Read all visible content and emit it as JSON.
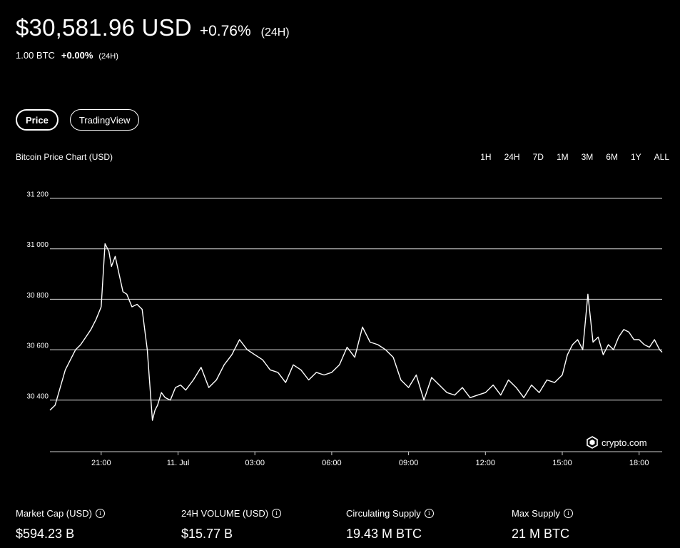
{
  "header": {
    "price": "$30,581.96 USD",
    "change": "+0.76%",
    "period": "(24H)"
  },
  "btc": {
    "amount": "1.00 BTC",
    "change": "+0.00%",
    "period": "(24H)"
  },
  "tabs": [
    {
      "label": "Price",
      "active": true
    },
    {
      "label": "TradingView",
      "active": false
    }
  ],
  "chart_title": "Bitcoin Price Chart (USD)",
  "ranges": [
    "1H",
    "24H",
    "7D",
    "1M",
    "3M",
    "6M",
    "1Y",
    "ALL"
  ],
  "watermark": "crypto.com",
  "stats": [
    {
      "label": "Market Cap (USD)",
      "value": "$594.23 B"
    },
    {
      "label": "24H VOLUME (USD)",
      "value": "$15.77 B"
    },
    {
      "label": "Circulating Supply",
      "value": "19.43 M BTC"
    },
    {
      "label": "Max Supply",
      "value": "21 M BTC"
    }
  ],
  "colors": {
    "background": "#000000",
    "foreground": "#ffffff"
  },
  "chart_data": {
    "type": "line",
    "ylim": [
      30200,
      31200
    ],
    "ytick_labels": [
      "31 200",
      "31 000",
      "30 800",
      "30 600",
      "30 400"
    ],
    "ytick_values": [
      31200,
      31000,
      30800,
      30600,
      30400
    ],
    "xtick_labels": [
      "21:00",
      "11. Jul",
      "03:00",
      "06:00",
      "09:00",
      "12:00",
      "15:00",
      "18:00"
    ],
    "xtick_hours": [
      21,
      24,
      27,
      30,
      33,
      36,
      39,
      42
    ],
    "xlim_hours": [
      19.0,
      42.9
    ],
    "series": [
      {
        "x_hours": [
          19.0,
          19.2,
          19.4,
          19.6,
          19.8,
          20.0,
          20.2,
          20.4,
          20.6,
          20.8,
          21.0,
          21.15,
          21.3,
          21.4,
          21.55,
          21.7,
          21.85,
          22.0,
          22.2,
          22.4,
          22.6,
          22.8,
          23.0,
          23.1,
          23.2,
          23.35,
          23.5,
          23.7,
          23.9,
          24.1,
          24.3,
          24.6,
          24.9,
          25.2,
          25.5,
          25.8,
          26.1,
          26.4,
          26.7,
          27.0,
          27.3,
          27.6,
          27.9,
          28.2,
          28.5,
          28.8,
          29.1,
          29.4,
          29.7,
          30.0,
          30.3,
          30.6,
          30.9,
          31.2,
          31.5,
          31.8,
          32.1,
          32.4,
          32.7,
          33.0,
          33.3,
          33.6,
          33.9,
          34.2,
          34.5,
          34.8,
          35.1,
          35.4,
          35.7,
          36.0,
          36.3,
          36.6,
          36.9,
          37.2,
          37.5,
          37.8,
          38.1,
          38.4,
          38.7,
          39.0,
          39.2,
          39.4,
          39.6,
          39.8,
          40.0,
          40.2,
          40.4,
          40.6,
          40.8,
          41.0,
          41.2,
          41.4,
          41.6,
          41.8,
          42.0,
          42.2,
          42.4,
          42.6,
          42.8,
          42.9
        ],
        "y": [
          30360,
          30380,
          30450,
          30520,
          30560,
          30600,
          30620,
          30650,
          30680,
          30720,
          30770,
          31020,
          30990,
          30930,
          30970,
          30900,
          30830,
          30820,
          30770,
          30780,
          30760,
          30600,
          30320,
          30360,
          30380,
          30430,
          30410,
          30400,
          30450,
          30460,
          30440,
          30480,
          30530,
          30450,
          30480,
          30540,
          30580,
          30640,
          30600,
          30580,
          30560,
          30520,
          30510,
          30470,
          30540,
          30520,
          30480,
          30510,
          30500,
          30510,
          30540,
          30610,
          30570,
          30690,
          30630,
          30620,
          30600,
          30570,
          30480,
          30450,
          30500,
          30400,
          30490,
          30460,
          30430,
          30420,
          30450,
          30410,
          30420,
          30430,
          30460,
          30420,
          30480,
          30450,
          30410,
          30460,
          30430,
          30480,
          30470,
          30500,
          30580,
          30620,
          30640,
          30600,
          30820,
          30630,
          30650,
          30580,
          30620,
          30600,
          30650,
          30680,
          30670,
          30640,
          30640,
          30620,
          30610,
          30640,
          30600,
          30590
        ]
      }
    ],
    "grid": true,
    "legend": "none"
  }
}
